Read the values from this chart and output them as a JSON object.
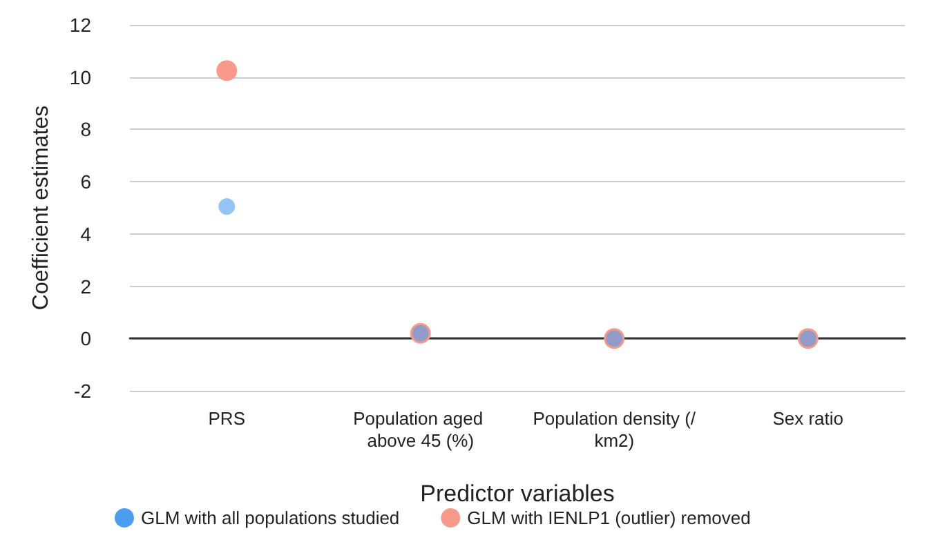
{
  "chart_data": {
    "type": "scatter",
    "xlabel": "Predictor variables",
    "ylabel": "Coefficient estimates",
    "categories": [
      "PRS",
      "Population aged above 45 (%)",
      "Population density (/km2)",
      "Sex ratio"
    ],
    "series": [
      {
        "name": "GLM with all populations studied",
        "color": "#4c9cf0",
        "values": [
          5.05,
          0.2,
          0,
          0
        ]
      },
      {
        "name": "GLM with IENLP1 (outlier) removed",
        "color": "#f79a8c",
        "values": [
          10.25,
          0.2,
          0,
          0
        ]
      }
    ],
    "ylim": [
      -2,
      12
    ],
    "yticks": [
      -2,
      0,
      2,
      4,
      6,
      8,
      10,
      12
    ],
    "grid": "y",
    "legend": "bottom",
    "marker": "circle"
  }
}
